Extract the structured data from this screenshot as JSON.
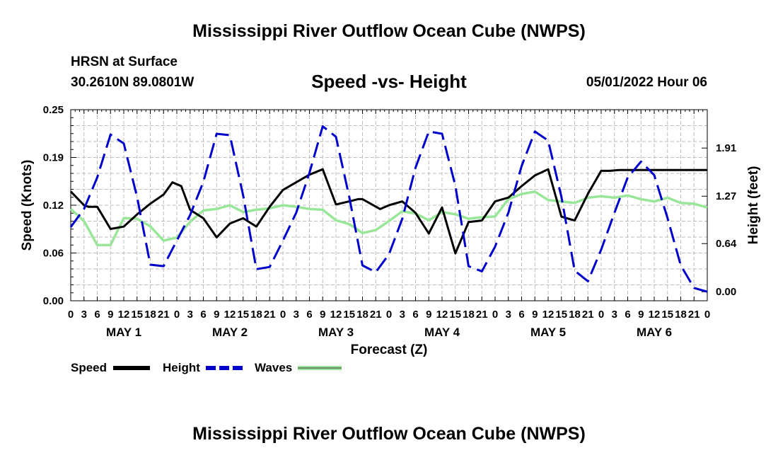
{
  "header": {
    "title": "Mississippi River Outflow Ocean Cube (NWPS)",
    "station": "HRSN at Surface",
    "coords": "30.2610N  89.0801W",
    "subtitle": "Speed -vs- Height",
    "datetime": "05/01/2022 Hour 06"
  },
  "footer": {
    "title": "Mississippi River Outflow Ocean Cube (NWPS)"
  },
  "chart_data": {
    "type": "line",
    "xlabel": "Forecast (Z)",
    "ylabel_left": "Speed (Knots)",
    "ylabel_right": "Height (feet)",
    "x_range_hours": [
      0,
      144
    ],
    "y_left_range": [
      0,
      0.25
    ],
    "y_right_range": [
      -0.12,
      2.42
    ],
    "y_left_ticks": [
      "0.00",
      "0.06",
      "0.12",
      "0.19",
      "0.25"
    ],
    "y_right_ticks": [
      "0.00",
      "0.64",
      "1.27",
      "1.91"
    ],
    "y_left_tick_values": [
      0,
      0.0625,
      0.125,
      0.1875,
      0.25
    ],
    "y_right_tick_values": [
      0,
      0.64,
      1.27,
      1.91
    ],
    "x_tick_labels": [
      "0",
      "3",
      "6",
      "9",
      "12",
      "15",
      "18",
      "21",
      "0",
      "3",
      "6",
      "9",
      "12",
      "15",
      "18",
      "21",
      "0",
      "3",
      "6",
      "9",
      "12",
      "15",
      "18",
      "21",
      "0",
      "3",
      "6",
      "9",
      "12",
      "15",
      "18",
      "21",
      "0",
      "3",
      "6",
      "9",
      "12",
      "15",
      "18",
      "21",
      "0",
      "3",
      "6",
      "9",
      "12",
      "15",
      "18",
      "21",
      "0"
    ],
    "day_labels": [
      "MAY 1",
      "MAY 2",
      "MAY 3",
      "MAY 4",
      "MAY 5",
      "MAY 6"
    ],
    "legend": [
      "Speed",
      "Height",
      "Waves"
    ],
    "colors": {
      "speed": "#000000",
      "height": "#0000cc",
      "waves": "#99e699",
      "grid": "#bbbbbb"
    },
    "series": [
      {
        "name": "Speed",
        "axis": "left",
        "x": [
          0,
          3,
          4,
          6,
          9,
          12,
          15,
          18,
          21,
          23,
          25,
          27,
          30,
          33,
          36,
          39,
          42,
          45,
          48,
          51,
          54,
          57,
          60,
          63,
          65,
          66,
          70,
          72,
          75,
          78,
          81,
          84,
          87,
          90,
          93,
          96,
          99,
          102,
          105,
          108,
          111,
          114,
          117,
          120,
          122,
          124,
          126,
          108
        ],
        "y": [
          0.143,
          0.125,
          0.123,
          0.123,
          0.094,
          0.097,
          0.113,
          0.127,
          0.139,
          0.155,
          0.15,
          0.119,
          0.108,
          0.083,
          0.101,
          0.108,
          0.097,
          0.123,
          0.145,
          0.155,
          0.165,
          0.172,
          0.126,
          0.13,
          0.133,
          0.133,
          0.12,
          0.125,
          0.13,
          0.115,
          0.088,
          0.122,
          0.062,
          0.103,
          0.105,
          0.13,
          0.135,
          0.15,
          0.164,
          0.172,
          0.11,
          0.105,
          0.14,
          0.17,
          0.17,
          0.171,
          0.171,
          0.171
        ]
      },
      {
        "name": "Height",
        "axis": "right",
        "x": [
          0,
          3,
          6,
          9,
          12,
          15,
          18,
          21,
          24,
          27,
          30,
          33,
          36,
          39,
          42,
          45,
          48,
          51,
          54,
          57,
          60,
          63,
          66,
          69,
          72,
          75,
          78,
          81,
          84,
          87,
          90,
          93,
          96,
          99,
          102,
          105,
          108,
          111,
          114,
          117,
          120,
          123,
          126,
          129,
          132,
          135,
          138,
          141,
          144
        ],
        "y": [
          0.86,
          1.1,
          1.52,
          2.09,
          1.97,
          1.26,
          0.36,
          0.34,
          0.68,
          1.02,
          1.46,
          2.1,
          2.08,
          1.28,
          0.3,
          0.33,
          0.68,
          1.05,
          1.58,
          2.2,
          2.06,
          1.26,
          0.35,
          0.26,
          0.5,
          0.97,
          1.65,
          2.13,
          2.1,
          1.41,
          0.34,
          0.27,
          0.6,
          1.05,
          1.67,
          2.13,
          2.01,
          1.26,
          0.28,
          0.14,
          0.56,
          1.05,
          1.52,
          1.73,
          1.55,
          0.98,
          0.35,
          0.05,
          0.0
        ]
      },
      {
        "name": "Waves",
        "axis": "right",
        "x": [
          0,
          3,
          6,
          9,
          12,
          15,
          18,
          21,
          24,
          27,
          30,
          33,
          36,
          39,
          42,
          45,
          48,
          51,
          54,
          57,
          60,
          63,
          66,
          69,
          72,
          75,
          78,
          81,
          84,
          87,
          90,
          93,
          96,
          99,
          102,
          105,
          108,
          111,
          114,
          117,
          120,
          123,
          126,
          129,
          132,
          135,
          138,
          141,
          144
        ],
        "y": [
          1.1,
          0.94,
          0.62,
          0.62,
          0.98,
          0.97,
          0.87,
          0.68,
          0.72,
          0.93,
          1.08,
          1.1,
          1.15,
          1.06,
          1.09,
          1.11,
          1.15,
          1.13,
          1.1,
          1.09,
          0.95,
          0.9,
          0.78,
          0.82,
          0.94,
          1.07,
          1.04,
          0.95,
          1.06,
          1.03,
          0.97,
          0.99,
          1.0,
          1.23,
          1.3,
          1.33,
          1.22,
          1.2,
          1.18,
          1.25,
          1.27,
          1.25,
          1.28,
          1.23,
          1.2,
          1.25,
          1.18,
          1.17,
          1.12
        ]
      }
    ]
  }
}
